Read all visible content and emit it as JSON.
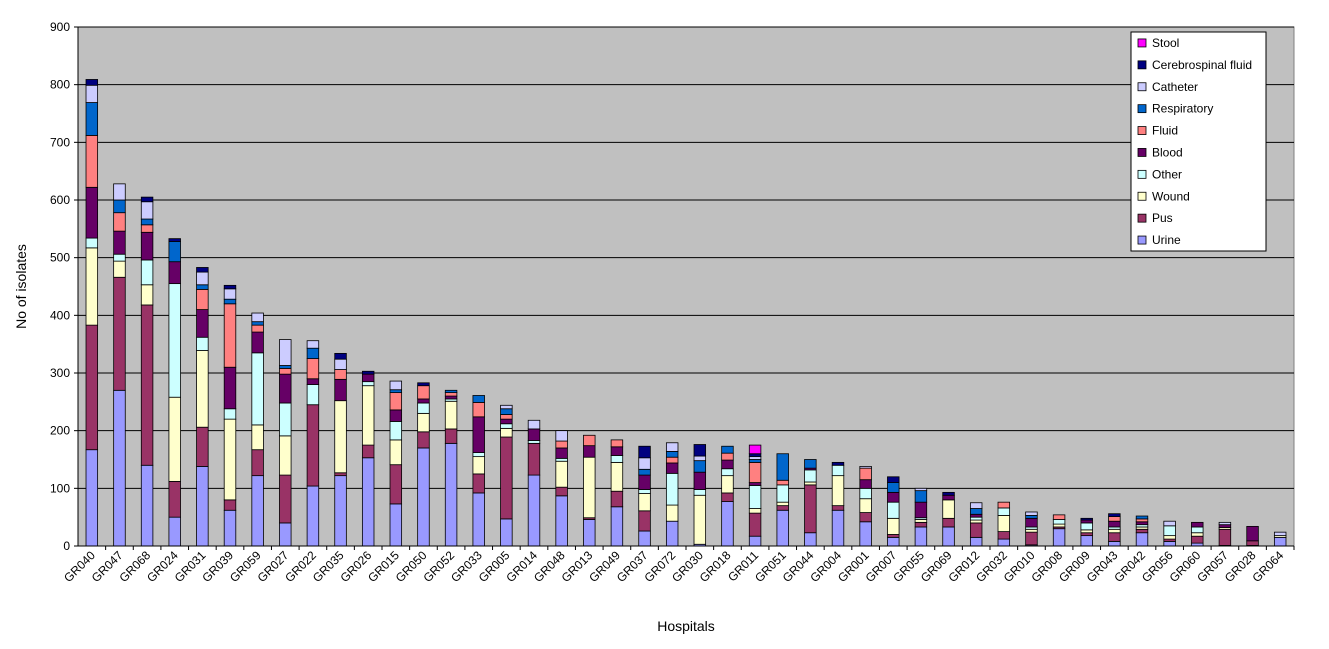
{
  "chart_data": {
    "type": "bar",
    "stacked": true,
    "title": "",
    "xlabel": "Hospitals",
    "ylabel": "No of isolates",
    "ylim": [
      0,
      900
    ],
    "yticks": [
      0,
      100,
      200,
      300,
      400,
      500,
      600,
      700,
      800,
      900
    ],
    "grid": true,
    "legend_position": "top-right",
    "plot_background": "#c0c0c0",
    "categories": [
      "GR040",
      "GR047",
      "GR068",
      "GR024",
      "GR031",
      "GR039",
      "GR059",
      "GR027",
      "GR022",
      "GR035",
      "GR026",
      "GR015",
      "GR050",
      "GR052",
      "GR033",
      "GR005",
      "GR014",
      "GR048",
      "GR013",
      "GR049",
      "GR037",
      "GR072",
      "GR030",
      "GR018",
      "GR011",
      "GR051",
      "GR044",
      "GR004",
      "GR001",
      "GR007",
      "GR055",
      "GR069",
      "GR012",
      "GR032",
      "GR010",
      "GR008",
      "GR009",
      "GR043",
      "GR042",
      "GR056",
      "GR060",
      "GR057",
      "GR028",
      "GR064"
    ],
    "series": [
      {
        "name": "Urine",
        "color": "#9999ff",
        "values": [
          167,
          270,
          140,
          50,
          138,
          62,
          122,
          40,
          104,
          122,
          153,
          73,
          170,
          178,
          92,
          47,
          123,
          87,
          46,
          68,
          26,
          43,
          3,
          77,
          17,
          62,
          23,
          62,
          42,
          15,
          33,
          33,
          15,
          12,
          2,
          30,
          18,
          8,
          23,
          8,
          5,
          1,
          1,
          15
        ]
      },
      {
        "name": "Pus",
        "color": "#993366",
        "values": [
          216,
          196,
          278,
          62,
          68,
          18,
          45,
          83,
          141,
          5,
          22,
          68,
          28,
          25,
          33,
          142,
          55,
          15,
          3,
          27,
          35,
          0,
          0,
          15,
          40,
          8,
          83,
          8,
          16,
          5,
          8,
          15,
          25,
          13,
          22,
          3,
          5,
          15,
          6,
          4,
          12,
          28,
          8,
          0
        ]
      },
      {
        "name": "Wound",
        "color": "#ffffcc",
        "values": [
          134,
          28,
          35,
          146,
          133,
          140,
          43,
          68,
          0,
          125,
          103,
          43,
          32,
          48,
          30,
          15,
          0,
          45,
          105,
          50,
          30,
          28,
          85,
          30,
          8,
          6,
          5,
          52,
          24,
          28,
          5,
          32,
          5,
          28,
          5,
          5,
          5,
          6,
          4,
          6,
          6,
          3,
          0,
          3
        ]
      },
      {
        "name": "Other",
        "color": "#ccffff",
        "values": [
          17,
          12,
          43,
          197,
          23,
          18,
          125,
          57,
          35,
          0,
          7,
          32,
          18,
          4,
          7,
          8,
          5,
          5,
          0,
          12,
          7,
          55,
          10,
          12,
          40,
          30,
          21,
          18,
          18,
          28,
          3,
          0,
          5,
          13,
          4,
          8,
          12,
          4,
          4,
          17,
          10,
          0,
          0,
          0
        ]
      },
      {
        "name": "Blood",
        "color": "#660066",
        "values": [
          88,
          40,
          48,
          38,
          48,
          72,
          36,
          50,
          10,
          37,
          13,
          20,
          7,
          5,
          62,
          8,
          20,
          18,
          20,
          15,
          25,
          18,
          30,
          15,
          5,
          0,
          3,
          0,
          15,
          17,
          27,
          8,
          5,
          0,
          15,
          0,
          5,
          10,
          5,
          0,
          8,
          5,
          25,
          0
        ]
      },
      {
        "name": "Fluid",
        "color": "#ff8080",
        "values": [
          90,
          32,
          13,
          0,
          35,
          110,
          12,
          10,
          35,
          17,
          0,
          30,
          23,
          6,
          25,
          8,
          0,
          12,
          18,
          12,
          0,
          10,
          0,
          12,
          35,
          8,
          0,
          0,
          20,
          0,
          0,
          0,
          0,
          10,
          0,
          8,
          0,
          8,
          5,
          0,
          0,
          0,
          0,
          0
        ]
      },
      {
        "name": "Respiratory",
        "color": "#0066cc",
        "values": [
          57,
          22,
          10,
          35,
          8,
          8,
          6,
          5,
          18,
          0,
          0,
          5,
          0,
          4,
          12,
          10,
          0,
          0,
          0,
          0,
          10,
          10,
          20,
          12,
          5,
          46,
          15,
          0,
          0,
          17,
          20,
          0,
          10,
          0,
          5,
          0,
          0,
          0,
          5,
          0,
          0,
          0,
          0,
          0
        ]
      },
      {
        "name": "Catheter",
        "color": "#ccccff",
        "values": [
          30,
          28,
          30,
          0,
          22,
          18,
          15,
          45,
          13,
          18,
          0,
          15,
          0,
          0,
          0,
          6,
          15,
          18,
          0,
          0,
          20,
          15,
          8,
          0,
          5,
          0,
          0,
          0,
          3,
          0,
          4,
          0,
          10,
          0,
          6,
          0,
          0,
          0,
          0,
          8,
          0,
          4,
          0,
          6
        ]
      },
      {
        "name": "Cerebrospinal fluid",
        "color": "#000080",
        "values": [
          10,
          0,
          8,
          5,
          8,
          6,
          0,
          0,
          0,
          10,
          5,
          0,
          5,
          0,
          0,
          0,
          0,
          0,
          0,
          0,
          20,
          0,
          20,
          0,
          5,
          0,
          0,
          5,
          0,
          10,
          0,
          5,
          0,
          0,
          0,
          0,
          3,
          5,
          0,
          0,
          0,
          0,
          0,
          0
        ]
      },
      {
        "name": "Stool",
        "color": "#ff00ff",
        "values": [
          0,
          0,
          0,
          0,
          0,
          0,
          0,
          0,
          0,
          0,
          0,
          0,
          0,
          0,
          0,
          0,
          0,
          0,
          0,
          0,
          0,
          0,
          0,
          0,
          15,
          0,
          0,
          0,
          0,
          0,
          0,
          0,
          0,
          0,
          0,
          0,
          0,
          0,
          0,
          0,
          0,
          0,
          0,
          0
        ]
      }
    ]
  }
}
